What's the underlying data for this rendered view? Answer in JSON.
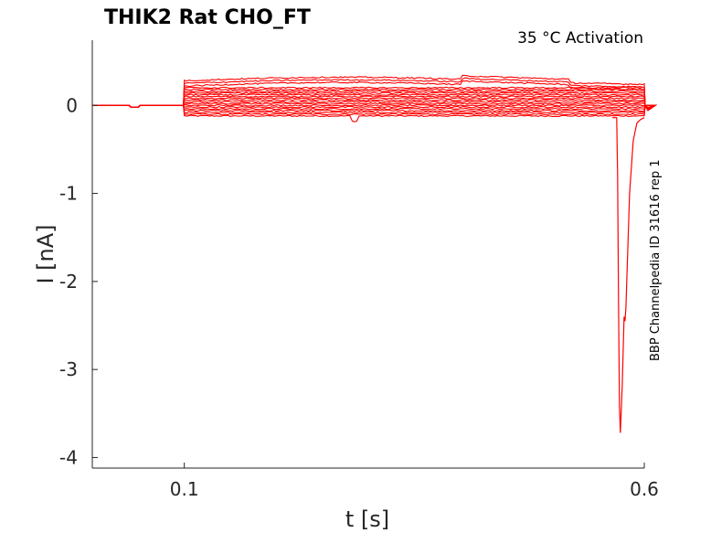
{
  "chart_data": {
    "type": "line",
    "title": "THIK2  Rat  CHO_FT",
    "annotation": "35 °C  Activation",
    "side_label": "BBP Channelpedia ID 31616 rep 1",
    "xlabel": "t [s]",
    "ylabel": "I [nA]",
    "xlim": [
      0.0,
      0.6
    ],
    "ylim": [
      -4.12,
      0.74
    ],
    "x_ticks": [
      0.1,
      0.6
    ],
    "x_tick_labels": [
      "0.1",
      "0.6"
    ],
    "y_ticks": [
      0,
      -1,
      -2,
      -3,
      -4
    ],
    "y_tick_labels": [
      "0",
      "-1",
      "-2",
      "-3",
      "-4"
    ],
    "grid": false,
    "line_color": "#ff0000",
    "step": {
      "start": 0.1,
      "end": 0.6
    },
    "series": [
      {
        "step_current": -0.12
      },
      {
        "step_current": -0.1
      },
      {
        "step_current": -0.08
      },
      {
        "step_current": -0.06
      },
      {
        "step_current": -0.04
      },
      {
        "step_current": -0.02
      },
      {
        "step_current": 0.0
      },
      {
        "step_current": 0.02
      },
      {
        "step_current": 0.04
      },
      {
        "step_current": 0.06
      },
      {
        "step_current": 0.08
      },
      {
        "step_current": 0.1
      },
      {
        "step_current": 0.12
      },
      {
        "step_current": 0.14
      },
      {
        "step_current": 0.16
      },
      {
        "step_current": 0.18
      },
      {
        "step_current": 0.2
      },
      {
        "step_current": 0.22
      },
      {
        "step_current": 0.25
      },
      {
        "step_current": 0.28
      }
    ],
    "spike": {
      "x": [
        0.565,
        0.57,
        0.571,
        0.572,
        0.573,
        0.574,
        0.576,
        0.578,
        0.579,
        0.58,
        0.584,
        0.588,
        0.592,
        0.596,
        0.6
      ],
      "y": [
        -0.14,
        -0.14,
        -0.8,
        -2.2,
        -3.4,
        -3.72,
        -3.2,
        -2.4,
        -2.45,
        -2.3,
        -1.0,
        -0.4,
        -0.2,
        -0.16,
        -0.14
      ]
    }
  }
}
